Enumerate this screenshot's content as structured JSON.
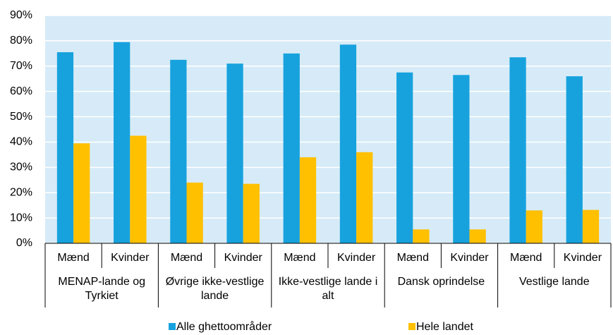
{
  "chart_data": {
    "type": "bar",
    "categories": [
      "Mænd",
      "Kvinder",
      "Mænd",
      "Kvinder",
      "Mænd",
      "Kvinder",
      "Mænd",
      "Kvinder",
      "Mænd",
      "Kvinder"
    ],
    "groups": [
      "MENAP-lande og Tyrkiet",
      "Øvrige ikke-vestlige lande",
      "Ikke-vestlige lande i alt",
      "Dansk oprindelse",
      "Vestlige lande"
    ],
    "series": [
      {
        "name": "Alle ghettoområder",
        "color": "#17a2de",
        "values": [
          75.5,
          79.5,
          72.5,
          71,
          75,
          78.5,
          67.5,
          66.5,
          73.5,
          66
        ]
      },
      {
        "name": "Hele landet",
        "color": "#ffc000",
        "values": [
          39.5,
          42.5,
          24,
          23.5,
          34,
          36,
          5.5,
          5.5,
          13,
          13.2
        ]
      }
    ],
    "ylim": [
      0,
      90
    ],
    "yticks": [
      {
        "value": 0,
        "label": "0%"
      },
      {
        "value": 10,
        "label": "10%"
      },
      {
        "value": 20,
        "label": "20%"
      },
      {
        "value": 30,
        "label": "30%"
      },
      {
        "value": 40,
        "label": "40%"
      },
      {
        "value": 50,
        "label": "50%"
      },
      {
        "value": 60,
        "label": "60%"
      },
      {
        "value": 70,
        "label": "70%"
      },
      {
        "value": 80,
        "label": "80%"
      },
      {
        "value": 90,
        "label": "90%"
      }
    ],
    "grid": true,
    "legend": "bottom"
  }
}
